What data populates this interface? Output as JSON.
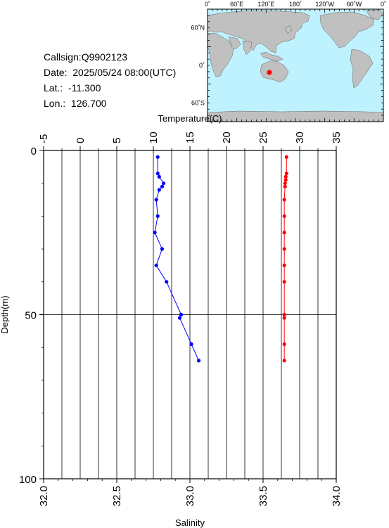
{
  "info": {
    "callsign": "Callsign:Q9902123",
    "date": "Date:  2025/05/24 08:00(UTC)",
    "lat": "Lat.:  -11.300",
    "lon": "Lon.:  126.700"
  },
  "map": {
    "top_labels": [
      "0˚",
      "60˚E",
      "120˚E",
      "180˚",
      "120˚W",
      "60˚W",
      "0˚"
    ],
    "lat_labels": [
      "60˚N",
      "0˚",
      "60˚S"
    ],
    "ocean_color": "#bff2ff",
    "land_color": "#c0c0c0",
    "marker_color": "#ff0000",
    "marker_position": {
      "lon": 126.7,
      "lat": -11.3
    }
  },
  "chart_data": {
    "type": "scatter",
    "title": "",
    "xlabel_top": "Temperature(C)",
    "xlabel_bottom": "Salinity",
    "ylabel": "Depth(m)",
    "temperature_ticks": [
      "-5",
      "0",
      "5",
      "10",
      "15",
      "20",
      "25",
      "30",
      "35"
    ],
    "salinity_ticks": [
      "32.0",
      "32.5",
      "33.0",
      "33.5",
      "34.0"
    ],
    "depth_ticks": [
      "0",
      "50",
      "100"
    ],
    "temperature_range": [
      -5,
      35
    ],
    "salinity_range": [
      32.0,
      34.0
    ],
    "depth_range": [
      0,
      100
    ],
    "grid": true,
    "series": [
      {
        "name": "Temperature",
        "axis": "temperature",
        "color": "#ff0000",
        "points": [
          {
            "x": 28.2,
            "y": 2
          },
          {
            "x": 28.2,
            "y": 7
          },
          {
            "x": 28.1,
            "y": 8
          },
          {
            "x": 28.1,
            "y": 9
          },
          {
            "x": 28.0,
            "y": 10
          },
          {
            "x": 28.0,
            "y": 11
          },
          {
            "x": 27.9,
            "y": 15
          },
          {
            "x": 27.9,
            "y": 20
          },
          {
            "x": 27.9,
            "y": 25
          },
          {
            "x": 27.9,
            "y": 30
          },
          {
            "x": 27.9,
            "y": 35
          },
          {
            "x": 27.9,
            "y": 40
          },
          {
            "x": 27.9,
            "y": 50
          },
          {
            "x": 27.9,
            "y": 51
          },
          {
            "x": 27.9,
            "y": 59
          },
          {
            "x": 27.9,
            "y": 64
          }
        ]
      },
      {
        "name": "Salinity",
        "axis": "salinity",
        "color": "#0000ff",
        "points": [
          {
            "x": 32.78,
            "y": 2
          },
          {
            "x": 32.78,
            "y": 7
          },
          {
            "x": 32.79,
            "y": 8
          },
          {
            "x": 32.82,
            "y": 10
          },
          {
            "x": 32.81,
            "y": 11
          },
          {
            "x": 32.79,
            "y": 12
          },
          {
            "x": 32.77,
            "y": 15
          },
          {
            "x": 32.78,
            "y": 20
          },
          {
            "x": 32.76,
            "y": 25
          },
          {
            "x": 32.81,
            "y": 30
          },
          {
            "x": 32.77,
            "y": 35
          },
          {
            "x": 32.84,
            "y": 40
          },
          {
            "x": 32.94,
            "y": 50
          },
          {
            "x": 32.93,
            "y": 51
          },
          {
            "x": 33.01,
            "y": 59
          },
          {
            "x": 33.06,
            "y": 64
          }
        ]
      }
    ]
  }
}
